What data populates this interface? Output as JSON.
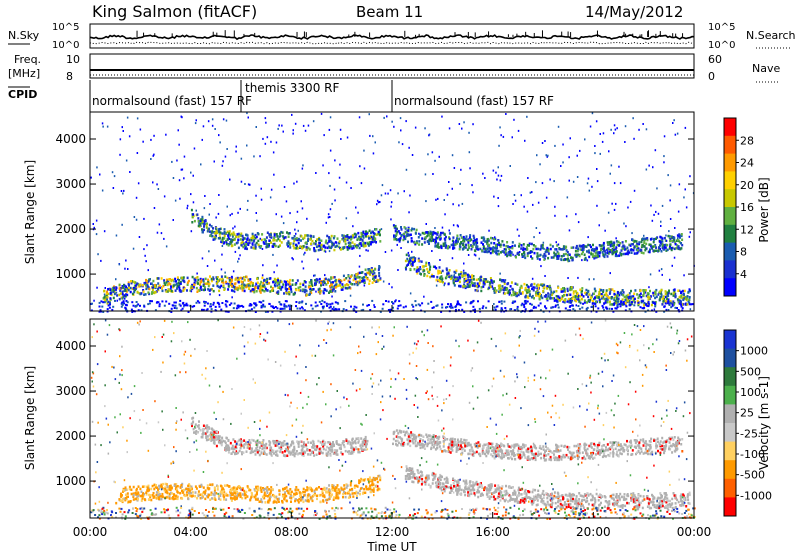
{
  "header": {
    "station": "King Salmon (fitACF)",
    "beam": "Beam 11",
    "date": "14/May/2012"
  },
  "noise_panel": {
    "left_label": "N.Sky",
    "right_label": "N.Search",
    "left_ticks": [
      "10^5",
      "10^0"
    ],
    "right_ticks": [
      "10^5",
      "10^0"
    ]
  },
  "freq_panel": {
    "left_label_line1": "Freq.",
    "left_label_line2": "[MHz]",
    "left_ticks": [
      "10",
      "8"
    ],
    "right_label": "Nave",
    "right_ticks": [
      "60",
      "0"
    ]
  },
  "cpid": {
    "label": "CPID",
    "segments": [
      {
        "text": "normalsound (fast) 157 RF",
        "start_hour": 0.0,
        "end_hour": 6.0,
        "row": "lower"
      },
      {
        "text": "themis 3300 RF",
        "start_hour": 6.0,
        "end_hour": 12.0,
        "row": "upper"
      },
      {
        "text": "normalsound (fast) 157 RF",
        "start_hour": 12.0,
        "end_hour": 24.0,
        "row": "lower"
      }
    ]
  },
  "colorbars": {
    "power": {
      "label": "Power [dB]",
      "ticks": [
        "28",
        "24",
        "20",
        "16",
        "12",
        "8",
        "4"
      ],
      "colors": [
        "#ff0000",
        "#ff5a00",
        "#ff9a00",
        "#ffd000",
        "#c8c800",
        "#60b040",
        "#208040",
        "#1a5cb0",
        "#1a30d0",
        "#0000ff"
      ]
    },
    "velocity": {
      "label": "Velocity [m s-1]",
      "ticks": [
        "1000",
        "500",
        "100",
        "25",
        "-25",
        "-100",
        "-500",
        "-1000"
      ],
      "colors": [
        "#1a34d2",
        "#1e50a0",
        "#2e7a3c",
        "#4cb04c",
        "#b0b0b0",
        "#c8c8c8",
        "#ffd060",
        "#ff9a00",
        "#ff6000",
        "#ff0000"
      ]
    }
  },
  "chart_data": [
    {
      "type": "heatmap",
      "title": "",
      "xlabel": "",
      "ylabel": "Slant Range [km]",
      "xlim": [
        0,
        24
      ],
      "ylim": [
        180,
        4600
      ],
      "y_ticks": [
        1000,
        2000,
        3000,
        4000
      ],
      "quantity": "Power [dB]",
      "color_range": [
        0,
        32
      ],
      "bands": [
        {
          "name": "",
          "points": [
            [
              0.5,
              500
            ],
            [
              1.5,
              700
            ],
            [
              3.0,
              780
            ],
            [
              5.0,
              820
            ],
            [
              7.0,
              780
            ],
            [
              8.5,
              720
            ],
            [
              9.5,
              780
            ],
            [
              10.5,
              900
            ],
            [
              11.5,
              1050
            ]
          ],
          "peak_db": 26
        },
        {
          "name": "",
          "points": [
            [
              4.0,
              2300
            ],
            [
              5.0,
              1900
            ],
            [
              6.0,
              1750
            ],
            [
              7.5,
              1800
            ],
            [
              9.0,
              1700
            ],
            [
              10.5,
              1750
            ],
            [
              11.5,
              1900
            ]
          ],
          "peak_db": 18
        },
        {
          "name": "",
          "points": [
            [
              12.0,
              1950
            ],
            [
              13.5,
              1800
            ],
            [
              15.5,
              1700
            ],
            [
              17.0,
              1550
            ],
            [
              19.0,
              1480
            ],
            [
              21.0,
              1600
            ],
            [
              23.5,
              1750
            ]
          ],
          "peak_db": 16
        },
        {
          "name": "",
          "points": [
            [
              12.5,
              1300
            ],
            [
              14.0,
              1000
            ],
            [
              15.5,
              800
            ],
            [
              17.5,
              650
            ],
            [
              19.5,
              550
            ],
            [
              21.5,
              500
            ],
            [
              23.8,
              520
            ]
          ],
          "peak_db": 22
        }
      ]
    },
    {
      "type": "heatmap",
      "title": "",
      "xlabel": "Time UT",
      "ylabel": "Slant Range [km]",
      "xlim": [
        0,
        24
      ],
      "ylim": [
        180,
        4600
      ],
      "x_ticks": [
        "00:00",
        "04:00",
        "08:00",
        "12:00",
        "16:00",
        "20:00",
        "00:00"
      ],
      "y_ticks": [
        1000,
        2000,
        3000,
        4000
      ],
      "quantity": "Velocity [m s-1]",
      "color_range": [
        -1000,
        1000
      ],
      "bands": [
        {
          "name": "",
          "points": [
            [
              1.0,
              700
            ],
            [
              3.0,
              800
            ],
            [
              5.0,
              780
            ],
            [
              7.0,
              720
            ],
            [
              9.0,
              720
            ],
            [
              10.5,
              850
            ],
            [
              11.5,
              1000
            ]
          ],
          "mean_velocity": -150
        },
        {
          "name": "",
          "points": [
            [
              4.0,
              2300
            ],
            [
              5.5,
              1800
            ],
            [
              7.5,
              1750
            ],
            [
              9.5,
              1750
            ],
            [
              11.0,
              1850
            ]
          ],
          "mean_velocity": 0
        },
        {
          "name": "",
          "points": [
            [
              12.0,
              2000
            ],
            [
              14.0,
              1850
            ],
            [
              16.0,
              1700
            ],
            [
              18.0,
              1650
            ],
            [
              20.0,
              1700
            ],
            [
              23.5,
              1850
            ]
          ],
          "mean_velocity": 0
        },
        {
          "name": "",
          "points": [
            [
              12.5,
              1200
            ],
            [
              14.5,
              900
            ],
            [
              16.5,
              750
            ],
            [
              18.5,
              600
            ],
            [
              20.5,
              580
            ],
            [
              23.8,
              600
            ]
          ],
          "mean_velocity": 10
        }
      ]
    }
  ]
}
